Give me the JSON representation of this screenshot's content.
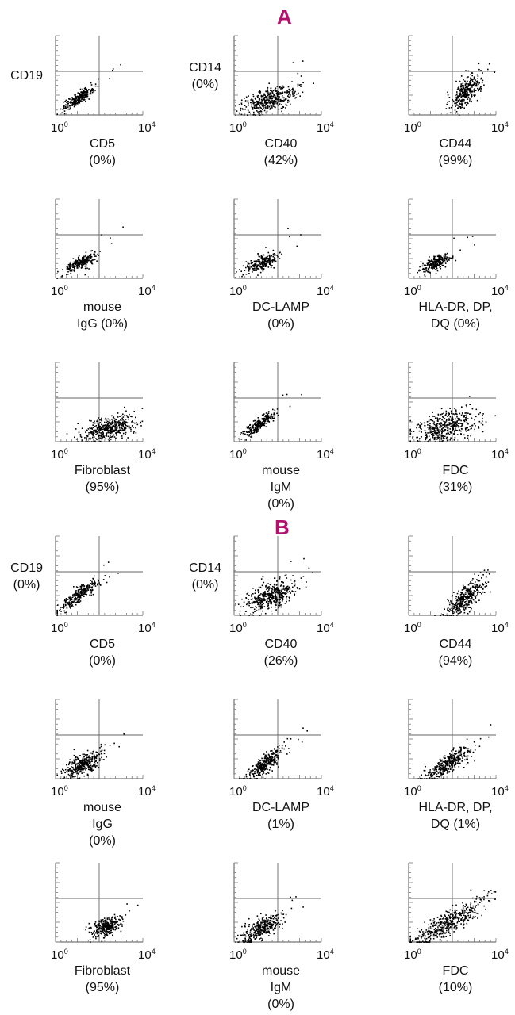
{
  "chart_data": {
    "type": "scatter",
    "axis_tick_labels": {
      "min_base": "10",
      "min_exp": "0",
      "max_base": "10",
      "max_exp": "4"
    },
    "sections": [
      {
        "label": "A",
        "plots": [
          {
            "y_label": [
              "CD19"
            ],
            "x_label": [
              "CD5",
              "(0%)"
            ],
            "percent": 0,
            "cloud": {
              "cx": 1.0,
              "cy": 0.85,
              "spread_x": 0.35,
              "spread_y": 0.28,
              "corr": 0.85,
              "n": 260
            }
          },
          {
            "y_label": [
              "CD14",
              "(0%)"
            ],
            "x_label": [
              "CD40",
              "(42%)"
            ],
            "percent": 42,
            "cloud": {
              "cx": 1.6,
              "cy": 0.8,
              "spread_x": 0.65,
              "spread_y": 0.35,
              "corr": 0.6,
              "n": 420
            }
          },
          {
            "y_label": [],
            "x_label": [
              "CD44",
              "(99%)"
            ],
            "percent": 99,
            "cloud": {
              "cx": 2.6,
              "cy": 1.2,
              "spread_x": 0.35,
              "spread_y": 0.45,
              "corr": 0.6,
              "n": 320
            }
          },
          {
            "y_label": [],
            "x_label": [
              "mouse",
              "IgG (0%)"
            ],
            "percent": 0,
            "cloud": {
              "cx": 1.1,
              "cy": 0.8,
              "spread_x": 0.35,
              "spread_y": 0.25,
              "corr": 0.75,
              "n": 240
            }
          },
          {
            "y_label": [],
            "x_label": [
              "DC-LAMP",
              "(0%)"
            ],
            "percent": 0,
            "cloud": {
              "cx": 1.2,
              "cy": 0.8,
              "spread_x": 0.38,
              "spread_y": 0.25,
              "corr": 0.7,
              "n": 250
            }
          },
          {
            "y_label": [],
            "x_label": [
              "HLA-DR, DP,",
              "DQ (0%)"
            ],
            "percent": 0,
            "cloud": {
              "cx": 1.2,
              "cy": 0.8,
              "spread_x": 0.38,
              "spread_y": 0.25,
              "corr": 0.7,
              "n": 250
            }
          },
          {
            "y_label": [],
            "x_label": [
              "Fibroblast",
              "(95%)"
            ],
            "percent": 95,
            "cloud": {
              "cx": 2.4,
              "cy": 0.7,
              "spread_x": 0.6,
              "spread_y": 0.32,
              "corr": 0.45,
              "n": 460
            }
          },
          {
            "y_label": [],
            "x_label": [
              "mouse",
              "IgM",
              "(0%)"
            ],
            "percent": 0,
            "cloud": {
              "cx": 1.1,
              "cy": 0.9,
              "spread_x": 0.35,
              "spread_y": 0.3,
              "corr": 0.85,
              "n": 260
            }
          },
          {
            "y_label": [],
            "x_label": [
              "FDC",
              "(31%)"
            ],
            "percent": 31,
            "cloud": {
              "cx": 1.7,
              "cy": 0.8,
              "spread_x": 0.7,
              "spread_y": 0.4,
              "corr": 0.4,
              "n": 460
            }
          }
        ]
      },
      {
        "label": "B",
        "plots": [
          {
            "y_label": [
              "CD19",
              "(0%)"
            ],
            "x_label": [
              "CD5",
              "(0%)"
            ],
            "percent": 0,
            "cloud": {
              "cx": 1.0,
              "cy": 1.0,
              "spread_x": 0.45,
              "spread_y": 0.4,
              "corr": 0.9,
              "n": 280
            }
          },
          {
            "y_label": [
              "CD14",
              "(0%)"
            ],
            "x_label": [
              "CD40",
              "(26%)"
            ],
            "percent": 26,
            "cloud": {
              "cx": 1.6,
              "cy": 1.0,
              "spread_x": 0.55,
              "spread_y": 0.35,
              "corr": 0.5,
              "n": 460
            }
          },
          {
            "y_label": [],
            "x_label": [
              "CD44",
              "(94%)"
            ],
            "percent": 94,
            "cloud": {
              "cx": 2.6,
              "cy": 0.9,
              "spread_x": 0.45,
              "spread_y": 0.5,
              "corr": 0.75,
              "n": 380
            }
          },
          {
            "y_label": [],
            "x_label": [
              "mouse",
              "IgG",
              "(0%)"
            ],
            "percent": 0,
            "cloud": {
              "cx": 1.2,
              "cy": 0.75,
              "spread_x": 0.45,
              "spread_y": 0.35,
              "corr": 0.6,
              "n": 360
            }
          },
          {
            "y_label": [],
            "x_label": [
              "DC-LAMP",
              "(1%)"
            ],
            "percent": 1,
            "cloud": {
              "cx": 1.4,
              "cy": 0.8,
              "spread_x": 0.4,
              "spread_y": 0.4,
              "corr": 0.8,
              "n": 330
            }
          },
          {
            "y_label": [],
            "x_label": [
              "HLA-DR, DP,",
              "DQ (1%)"
            ],
            "percent": 1,
            "cloud": {
              "cx": 1.8,
              "cy": 0.8,
              "spread_x": 0.5,
              "spread_y": 0.4,
              "corr": 0.8,
              "n": 360
            }
          },
          {
            "y_label": [],
            "x_label": [
              "Fibroblast",
              "(95%)"
            ],
            "percent": 95,
            "cloud": {
              "cx": 2.3,
              "cy": 0.8,
              "spread_x": 0.35,
              "spread_y": 0.25,
              "corr": 0.5,
              "n": 300
            }
          },
          {
            "y_label": [],
            "x_label": [
              "mouse",
              "IgM",
              "(0%)"
            ],
            "percent": 0,
            "cloud": {
              "cx": 1.2,
              "cy": 0.7,
              "spread_x": 0.45,
              "spread_y": 0.35,
              "corr": 0.7,
              "n": 330
            }
          },
          {
            "y_label": [],
            "x_label": [
              "FDC",
              "(10%)"
            ],
            "percent": 10,
            "cloud": {
              "cx": 1.8,
              "cy": 1.0,
              "spread_x": 0.8,
              "spread_y": 0.55,
              "corr": 0.85,
              "n": 460
            }
          }
        ]
      }
    ]
  }
}
